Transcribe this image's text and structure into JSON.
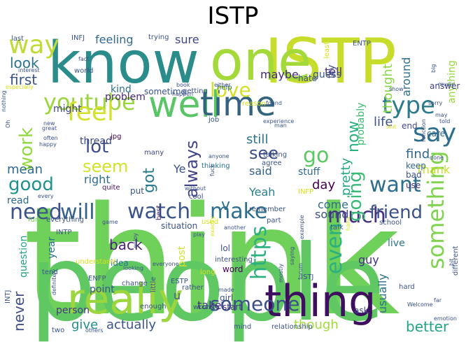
{
  "title": "ISTP",
  "words": [
    {
      "text": "think",
      "color": "#6fd05a"
    },
    {
      "text": "people",
      "color": "#5fc862"
    },
    {
      "text": "ISTP",
      "color": "#c8dc2c"
    },
    {
      "text": "know",
      "color": "#2a8c8b"
    },
    {
      "text": "one",
      "color": "#a4d93a"
    },
    {
      "text": "thing",
      "color": "#3e0f5e"
    },
    {
      "text": "really",
      "color": "#9ad63c"
    },
    {
      "text": "well",
      "color": "#5ac566"
    },
    {
      "text": "time",
      "color": "#33637f"
    },
    {
      "text": "youtube",
      "color": "#9ad63c"
    },
    {
      "text": "way",
      "color": "#c0da36"
    },
    {
      "text": "feel",
      "color": "#d4e12a"
    },
    {
      "text": "say",
      "color": "#2c6e8e"
    },
    {
      "text": "type",
      "color": "#2b7b8d"
    },
    {
      "text": "watch",
      "color": "#3a548a"
    },
    {
      "text": "make",
      "color": "#2c6e8e"
    },
    {
      "text": "need",
      "color": "#3b528b"
    },
    {
      "text": "will",
      "color": "#35608d"
    },
    {
      "text": "want",
      "color": "#2c6e8e"
    },
    {
      "text": "much",
      "color": "#46317e"
    },
    {
      "text": "even",
      "color": "#2bb07f"
    },
    {
      "text": "something",
      "color": "#7fd34e"
    },
    {
      "text": "https",
      "color": "#2bb07f"
    },
    {
      "text": "going",
      "color": "#3aba76"
    },
    {
      "text": "friend",
      "color": "#3b528b"
    },
    {
      "text": "someone",
      "color": "#3c4f8a"
    },
    {
      "text": "love",
      "color": "#d4e12a"
    },
    {
      "text": "work",
      "color": "#94d840"
    },
    {
      "text": "lot",
      "color": "#3d4e8a"
    },
    {
      "text": "go",
      "color": "#5cc863"
    },
    {
      "text": "see",
      "color": "#3e4b89"
    },
    {
      "text": "good",
      "color": "#20928c"
    },
    {
      "text": "seem",
      "color": "#d4e12a"
    },
    {
      "text": "always",
      "color": "#404387"
    },
    {
      "text": "got",
      "color": "#2b7b8d"
    },
    {
      "text": "v",
      "color": "#2d718e"
    },
    {
      "text": "first",
      "color": "#3b528b"
    },
    {
      "text": "look",
      "color": "#2d718e"
    },
    {
      "text": "now",
      "color": "#2bb07f"
    },
    {
      "text": "never",
      "color": "#3d4e8a"
    },
    {
      "text": "back",
      "color": "#482475"
    },
    {
      "text": "give",
      "color": "#21908d"
    },
    {
      "text": "actually",
      "color": "#3a548a"
    },
    {
      "text": "though",
      "color": "#a2da37"
    },
    {
      "text": "pretty",
      "color": "#22a884"
    },
    {
      "text": "usually",
      "color": "#2e6f8e"
    },
    {
      "text": "better",
      "color": "#20a386"
    },
    {
      "text": "Thank",
      "color": "#c8e020"
    },
    {
      "text": "find",
      "color": "#31678e"
    },
    {
      "text": "life",
      "color": "#3b528b"
    },
    {
      "text": "said",
      "color": "#355f8d"
    },
    {
      "text": "still",
      "color": "#2a768e"
    },
    {
      "text": "Yeah",
      "color": "#277f8e"
    },
    {
      "text": "day",
      "color": "#440154"
    },
    {
      "text": "mean",
      "color": "#2f6b8e"
    },
    {
      "text": "right",
      "color": "#2e6e8e"
    },
    {
      "text": "maybe",
      "color": "#482878"
    },
    {
      "text": "feeling",
      "color": "#31688e"
    },
    {
      "text": "sure",
      "color": "#3f4788"
    },
    {
      "text": "probably",
      "color": "#3fbc73"
    },
    {
      "text": "guy",
      "color": "#46337f"
    },
    {
      "text": "take",
      "color": "#46317e"
    },
    {
      "text": "come",
      "color": "#2e6e8e"
    },
    {
      "text": "thought",
      "color": "#8bd646"
    },
    {
      "text": "sound",
      "color": "#3d4e8a"
    },
    {
      "text": "around",
      "color": "#2d708e"
    },
    {
      "text": "tell",
      "color": "#46307e"
    },
    {
      "text": "try",
      "color": "#3f4889"
    },
    {
      "text": "anything",
      "color": "#95d840"
    },
    {
      "text": "stuff",
      "color": "#2f6c8e"
    },
    {
      "text": "person",
      "color": "#453882"
    },
    {
      "text": "post",
      "color": "#d4e12a"
    },
    {
      "text": "question",
      "color": "#20a386"
    },
    {
      "text": "might",
      "color": "#414487"
    },
    {
      "text": "problem",
      "color": "#482878"
    },
    {
      "text": "sometime",
      "color": "#3a548a"
    },
    {
      "text": "thread",
      "color": "#3e4a89"
    },
    {
      "text": "kind",
      "color": "#2d708e"
    },
    {
      "text": "Ye",
      "color": "#3b528b"
    },
    {
      "text": "u",
      "color": "#365c8d"
    },
    {
      "text": "point",
      "color": "#3b528b"
    },
    {
      "text": "read",
      "color": "#31688e"
    },
    {
      "text": "idea",
      "color": "#2a768e"
    },
    {
      "text": "year",
      "color": "#2c728e"
    },
    {
      "text": "lol",
      "color": "#3b528b"
    },
    {
      "text": "word",
      "color": "#440154"
    },
    {
      "text": "start",
      "color": "#453581"
    },
    {
      "text": "girl",
      "color": "#3b528b"
    },
    {
      "text": "live",
      "color": "#2c728e"
    },
    {
      "text": "ask",
      "color": "#3f4788"
    },
    {
      "text": "use",
      "color": "#46327e"
    },
    {
      "text": "bad",
      "color": "#3b528b"
    },
    {
      "text": "keep",
      "color": "#31688e"
    },
    {
      "text": "care",
      "color": "#31688e"
    },
    {
      "text": "end",
      "color": "#3e4a89"
    },
    {
      "text": "answer",
      "color": "#424086"
    },
    {
      "text": "hate",
      "color": "#3b528b"
    },
    {
      "text": "guess",
      "color": "#3b528b"
    },
    {
      "text": "reason",
      "color": "#d8e219"
    },
    {
      "text": "job",
      "color": "#3b528b"
    },
    {
      "text": "help",
      "color": "#2c728e"
    },
    {
      "text": "getting",
      "color": "#3b528b"
    },
    {
      "text": "jpg",
      "color": "#440154"
    },
    {
      "text": "many",
      "color": "#3f4788"
    },
    {
      "text": "quite",
      "color": "#471365"
    },
    {
      "text": "cool",
      "color": "#3b528b"
    },
    {
      "text": "put",
      "color": "#3b528b"
    },
    {
      "text": "fun",
      "color": "#7ad151"
    },
    {
      "text": "everything",
      "color": "#3b528b"
    },
    {
      "text": "situation",
      "color": "#3b528b"
    },
    {
      "text": "best",
      "color": "#482878"
    },
    {
      "text": "used",
      "color": "#d8e219"
    },
    {
      "text": "remember",
      "color": "#3b528b"
    },
    {
      "text": "part",
      "color": "#3b528b"
    },
    {
      "text": "talk",
      "color": "#3b528b"
    },
    {
      "text": "school",
      "color": "#3b528b"
    },
    {
      "text": "INFP",
      "color": "#d8e219"
    },
    {
      "text": "agree",
      "color": "#3b528b"
    },
    {
      "text": "talking",
      "color": "#3b528b"
    },
    {
      "text": "thinking",
      "color": "#2c728e"
    },
    {
      "text": "long",
      "color": "#d8e219"
    },
    {
      "text": "interesting",
      "color": "#3b528b"
    },
    {
      "text": "ESTP",
      "color": "#3b528b"
    },
    {
      "text": "rather",
      "color": "#3b528b"
    },
    {
      "text": "little",
      "color": "#3b528b"
    },
    {
      "text": "understand",
      "color": "#d8e219"
    },
    {
      "text": "tend",
      "color": "#3b528b"
    },
    {
      "text": "enough",
      "color": "#3b528b"
    },
    {
      "text": "wrong",
      "color": "#3b528b"
    },
    {
      "text": "mind",
      "color": "#3b528b"
    },
    {
      "text": "relationship",
      "color": "#3b528b"
    },
    {
      "text": "two",
      "color": "#3b528b"
    },
    {
      "text": "others",
      "color": "#3b528b"
    },
    {
      "text": "ENTP",
      "color": "#3b528b"
    },
    {
      "text": "INTJ",
      "color": "#3b528b"
    },
    {
      "text": "INTP",
      "color": "#3b528b"
    },
    {
      "text": "ENFP",
      "color": "#3b528b"
    },
    {
      "text": "ISTJ",
      "color": "#3b528b"
    },
    {
      "text": "INFJ",
      "color": "#3b528b"
    },
    {
      "text": "trying",
      "color": "#3b528b"
    },
    {
      "text": "least",
      "color": "#d8e219"
    },
    {
      "text": "last",
      "color": "#3b528b"
    },
    {
      "text": "world",
      "color": "#3b528b"
    },
    {
      "text": "fact",
      "color": "#3b528b"
    },
    {
      "text": "Oh",
      "color": "#3b528b"
    },
    {
      "text": "nothing",
      "color": "#3b528b"
    },
    {
      "text": "new",
      "color": "#3b528b"
    },
    {
      "text": "often",
      "color": "#3b528b"
    },
    {
      "text": "great",
      "color": "#3b528b"
    },
    {
      "text": "happy",
      "color": "#3b528b"
    },
    {
      "text": "every",
      "color": "#3b528b"
    },
    {
      "text": "enjoy",
      "color": "#3b528b"
    },
    {
      "text": "without",
      "color": "#3b528b"
    },
    {
      "text": "play",
      "color": "#3b528b"
    },
    {
      "text": "fuck",
      "color": "#3b528b"
    },
    {
      "text": "anyone",
      "color": "#3b528b"
    },
    {
      "text": "exactly",
      "color": "#d8e219"
    },
    {
      "text": "game",
      "color": "#3b528b"
    },
    {
      "text": "another",
      "color": "#3b528b"
    },
    {
      "text": "example",
      "color": "#3b528b"
    },
    {
      "text": "forum",
      "color": "#3b528b"
    },
    {
      "text": "made",
      "color": "#3b528b"
    },
    {
      "text": "mostly",
      "color": "#3b528b"
    },
    {
      "text": "Welcome",
      "color": "#3b528b"
    },
    {
      "text": "hard",
      "color": "#3b528b"
    },
    {
      "text": "different",
      "color": "#3b528b"
    },
    {
      "text": "far",
      "color": "#3b528b"
    },
    {
      "text": "emotion",
      "color": "#3b528b"
    },
    {
      "text": "definitely",
      "color": "#3b528b"
    },
    {
      "text": "change",
      "color": "#3b528b"
    },
    {
      "text": "everyone",
      "color": "#3b528b"
    },
    {
      "text": "saying",
      "color": "#3b528b"
    },
    {
      "text": "found",
      "color": "#3b528b"
    },
    {
      "text": "shit",
      "color": "#d8e219"
    },
    {
      "text": "function",
      "color": "#3b528b"
    },
    {
      "text": "told",
      "color": "#3b528b"
    },
    {
      "text": "may",
      "color": "#3b528b"
    },
    {
      "text": "sorry",
      "color": "#3b528b"
    },
    {
      "text": "show",
      "color": "#3b528b"
    },
    {
      "text": "music",
      "color": "#3b528b"
    },
    {
      "text": "big",
      "color": "#3b528b"
    },
    {
      "text": "done",
      "color": "#3b528b"
    },
    {
      "text": "either",
      "color": "#3b528b"
    },
    {
      "text": "happen",
      "color": "#3b528b"
    },
    {
      "text": "book",
      "color": "#3b528b"
    },
    {
      "text": "haha",
      "color": "#d8e219"
    },
    {
      "text": "looking",
      "color": "#3b528b"
    },
    {
      "text": "bit",
      "color": "#3b528b"
    },
    {
      "text": "interest",
      "color": "#3b528b"
    },
    {
      "text": "especially",
      "color": "#d8e219"
    },
    {
      "text": "experience",
      "color": "#3b528b"
    },
    {
      "text": "man",
      "color": "#3b528b"
    },
    {
      "text": "MBTI",
      "color": "#3b528b"
    },
    {
      "text": "So",
      "color": "#d8e219"
    }
  ]
}
